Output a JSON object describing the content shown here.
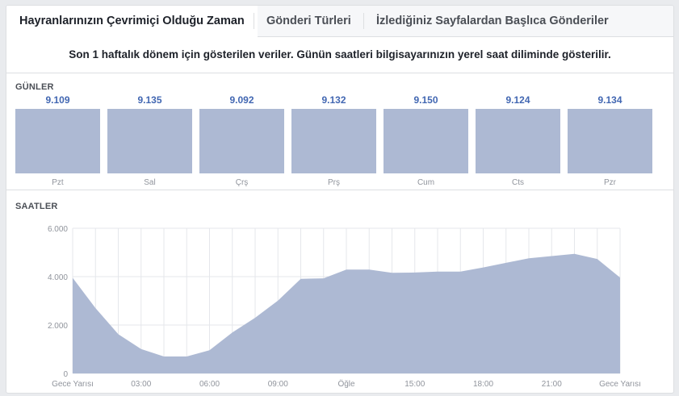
{
  "tabs": [
    {
      "label": "Hayranlarınızın Çevrimiçi Olduğu Zaman",
      "active": true
    },
    {
      "label": "Gönderi Türleri",
      "active": false
    },
    {
      "label": "İzlediğiniz Sayfalardan Başlıca Gönderiler",
      "active": false
    }
  ],
  "notice": "Son 1 haftalık dönem için gösterilen veriler. Günün saatleri bilgisayarınızın yerel saat diliminde gösterilir.",
  "days_section": {
    "title": "GÜNLER",
    "items": [
      {
        "label": "Pzt",
        "value": "9.109"
      },
      {
        "label": "Sal",
        "value": "9.135"
      },
      {
        "label": "Çrş",
        "value": "9.092"
      },
      {
        "label": "Prş",
        "value": "9.132"
      },
      {
        "label": "Cum",
        "value": "9.150"
      },
      {
        "label": "Cts",
        "value": "9.124"
      },
      {
        "label": "Pzr",
        "value": "9.134"
      }
    ]
  },
  "hours_section": {
    "title": "SAATLER"
  },
  "colors": {
    "accent": "#4267b2",
    "bar_fill": "#adb9d3",
    "area_fill": "#adb9d3"
  },
  "chart_data": [
    {
      "type": "bar",
      "title": "GÜNLER",
      "categories": [
        "Pzt",
        "Sal",
        "Çrş",
        "Prş",
        "Cum",
        "Cts",
        "Pzr"
      ],
      "values": [
        9109,
        9135,
        9092,
        9132,
        9150,
        9124,
        9134
      ],
      "grid": false
    },
    {
      "type": "area",
      "title": "SAATLER",
      "x": [
        0,
        1,
        2,
        3,
        4,
        5,
        6,
        7,
        8,
        9,
        10,
        11,
        12,
        13,
        14,
        15,
        16,
        17,
        18,
        19,
        20,
        21,
        22,
        23,
        24
      ],
      "values": [
        3950,
        2700,
        1620,
        1010,
        700,
        700,
        960,
        1690,
        2300,
        3010,
        3910,
        3930,
        4290,
        4290,
        4160,
        4170,
        4210,
        4210,
        4380,
        4570,
        4760,
        4850,
        4940,
        4730,
        3960
      ],
      "ylim": [
        0,
        6000
      ],
      "yticks": [
        "0",
        "2.000",
        "4.000",
        "6.000"
      ],
      "xticks": [
        {
          "at": 0,
          "label": "Gece Yarısı"
        },
        {
          "at": 3,
          "label": "03:00"
        },
        {
          "at": 6,
          "label": "06:00"
        },
        {
          "at": 9,
          "label": "09:00"
        },
        {
          "at": 12,
          "label": "Öğle"
        },
        {
          "at": 15,
          "label": "15:00"
        },
        {
          "at": 18,
          "label": "18:00"
        },
        {
          "at": 21,
          "label": "21:00"
        },
        {
          "at": 24,
          "label": "Gece Yarısı"
        }
      ],
      "grid": true
    }
  ]
}
